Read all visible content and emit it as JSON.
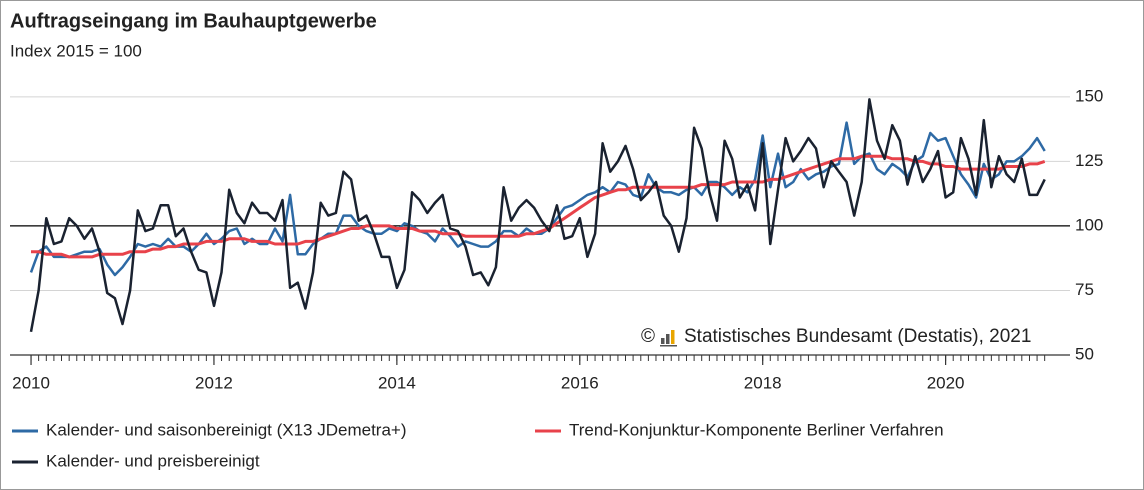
{
  "chart_data": {
    "type": "line",
    "title": "Auftragseingang im Bauhauptgewerbe",
    "subtitle": "Index 2015 = 100",
    "x": [
      2010,
      2010.083,
      2010.167,
      2010.25,
      2010.333,
      2010.417,
      2010.5,
      2010.583,
      2010.667,
      2010.75,
      2010.833,
      2010.917,
      2011,
      2011.083,
      2011.167,
      2011.25,
      2011.333,
      2011.417,
      2011.5,
      2011.583,
      2011.667,
      2011.75,
      2011.833,
      2011.917,
      2012,
      2012.083,
      2012.167,
      2012.25,
      2012.333,
      2012.417,
      2012.5,
      2012.583,
      2012.667,
      2012.75,
      2012.833,
      2012.917,
      2013,
      2013.083,
      2013.167,
      2013.25,
      2013.333,
      2013.417,
      2013.5,
      2013.583,
      2013.667,
      2013.75,
      2013.833,
      2013.917,
      2014,
      2014.083,
      2014.167,
      2014.25,
      2014.333,
      2014.417,
      2014.5,
      2014.583,
      2014.667,
      2014.75,
      2014.833,
      2014.917,
      2015,
      2015.083,
      2015.167,
      2015.25,
      2015.333,
      2015.417,
      2015.5,
      2015.583,
      2015.667,
      2015.75,
      2015.833,
      2015.917,
      2016,
      2016.083,
      2016.167,
      2016.25,
      2016.333,
      2016.417,
      2016.5,
      2016.583,
      2016.667,
      2016.75,
      2016.833,
      2016.917,
      2017,
      2017.083,
      2017.167,
      2017.25,
      2017.333,
      2017.417,
      2017.5,
      2017.583,
      2017.667,
      2017.75,
      2017.833,
      2017.917,
      2018,
      2018.083,
      2018.167,
      2018.25,
      2018.333,
      2018.417,
      2018.5,
      2018.583,
      2018.667,
      2018.75,
      2018.833,
      2018.917,
      2019,
      2019.083,
      2019.167,
      2019.25,
      2019.333,
      2019.417,
      2019.5,
      2019.583,
      2019.667,
      2019.75,
      2019.833,
      2019.917,
      2020,
      2020.083,
      2020.167,
      2020.25,
      2020.333,
      2020.417,
      2020.5,
      2020.583,
      2020.667,
      2020.75,
      2020.833,
      2020.917,
      2021,
      2021.083
    ],
    "series": [
      {
        "name": "Kalender- und saisonbereinigt (X13 JDemetra+)",
        "color": "#2e6aa5",
        "values": [
          82,
          90,
          92,
          88,
          88,
          88,
          89,
          90,
          90,
          91,
          85,
          81,
          84,
          88,
          93,
          92,
          93,
          92,
          95,
          92,
          92,
          90,
          93,
          97,
          93,
          95,
          98,
          99,
          93,
          95,
          93,
          93,
          99,
          94,
          112,
          89,
          89,
          93,
          95,
          97,
          97,
          104,
          104,
          100,
          98,
          97,
          97,
          99,
          98,
          101,
          100,
          98,
          97,
          94,
          99,
          96,
          92,
          94,
          93,
          92,
          92,
          94,
          98,
          98,
          96,
          99,
          97,
          97,
          99,
          103,
          107,
          108,
          110,
          112,
          113,
          115,
          113,
          117,
          116,
          112,
          111,
          120,
          115,
          113,
          113,
          112,
          114,
          115,
          112,
          117,
          117,
          115,
          112,
          115,
          113,
          118,
          135,
          115,
          128,
          115,
          117,
          122,
          118,
          120,
          121,
          123,
          124,
          140,
          124,
          127,
          128,
          122,
          120,
          124,
          122,
          119,
          125,
          127,
          136,
          133,
          134,
          127,
          120,
          116,
          111,
          124,
          118,
          120,
          125,
          125,
          127,
          130,
          134,
          129
        ]
      },
      {
        "name": "Trend-Konjunktur-Komponente Berliner Verfahren",
        "color": "#e8424a",
        "values": [
          90,
          90,
          89,
          89,
          89,
          88,
          88,
          88,
          88,
          89,
          89,
          89,
          89,
          90,
          90,
          90,
          91,
          91,
          92,
          92,
          93,
          93,
          93,
          94,
          94,
          94,
          95,
          95,
          95,
          94,
          94,
          94,
          93,
          93,
          93,
          93,
          94,
          94,
          95,
          96,
          97,
          98,
          99,
          99,
          100,
          100,
          100,
          100,
          99,
          99,
          99,
          98,
          98,
          98,
          97,
          97,
          97,
          96,
          96,
          96,
          96,
          96,
          96,
          96,
          96,
          97,
          97,
          98,
          99,
          101,
          103,
          105,
          107,
          109,
          111,
          112,
          113,
          114,
          114,
          115,
          115,
          115,
          115,
          115,
          115,
          115,
          115,
          115,
          116,
          116,
          116,
          116,
          117,
          117,
          117,
          117,
          117,
          118,
          118,
          119,
          120,
          121,
          122,
          123,
          124,
          125,
          126,
          126,
          126,
          127,
          127,
          127,
          127,
          126,
          126,
          126,
          125,
          125,
          124,
          124,
          123,
          123,
          122,
          122,
          122,
          122,
          122,
          122,
          123,
          123,
          123,
          124,
          124,
          125
        ]
      },
      {
        "name": "Kalender- und preisbereinigt",
        "color": "#1a2230",
        "values": [
          59,
          75,
          103,
          93,
          94,
          103,
          100,
          95,
          99,
          90,
          74,
          72,
          62,
          75,
          106,
          98,
          99,
          108,
          108,
          96,
          99,
          90,
          83,
          82,
          69,
          82,
          114,
          105,
          101,
          109,
          105,
          105,
          102,
          110,
          76,
          78,
          68,
          82,
          109,
          104,
          105,
          121,
          118,
          102,
          104,
          97,
          88,
          88,
          76,
          83,
          113,
          110,
          105,
          109,
          112,
          99,
          98,
          92,
          81,
          82,
          77,
          84,
          115,
          102,
          107,
          110,
          107,
          102,
          98,
          108,
          95,
          96,
          103,
          88,
          97,
          132,
          121,
          125,
          131,
          122,
          110,
          113,
          117,
          104,
          100,
          90,
          103,
          138,
          130,
          113,
          102,
          133,
          126,
          111,
          116,
          106,
          132,
          93,
          114,
          134,
          125,
          129,
          134,
          130,
          115,
          125,
          121,
          117,
          104,
          117,
          149,
          133,
          126,
          139,
          133,
          116,
          127,
          117,
          122,
          129,
          111,
          113,
          134,
          126,
          112,
          141,
          115,
          127,
          120,
          117,
          126,
          112,
          112,
          118
        ]
      }
    ],
    "xlim": [
      2009.77,
      2021.36
    ],
    "xticks": [
      2010,
      2012,
      2014,
      2016,
      2018,
      2020
    ],
    "ylim": [
      50,
      160
    ],
    "yticks": [
      50,
      75,
      100,
      125,
      150
    ],
    "grid": true,
    "reference_line": 100,
    "annotation": {
      "symbol": "©",
      "text": "Statistisches Bundesamt (Destatis), 2021"
    }
  }
}
